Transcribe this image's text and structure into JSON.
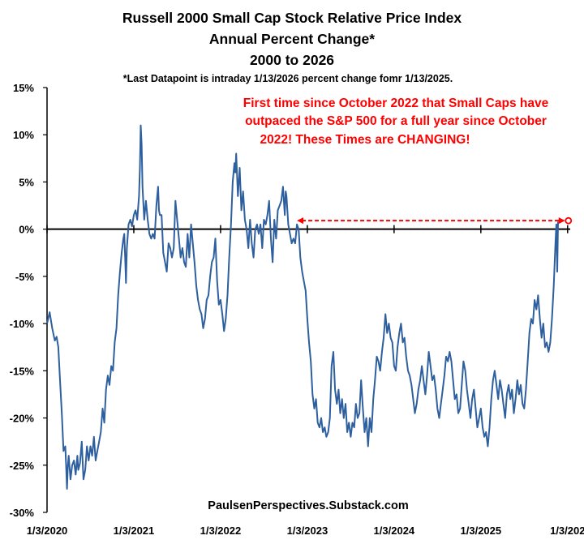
{
  "chart_data": {
    "type": "line",
    "title_lines": [
      "Russell 2000 Small Cap Stock Relative Price Index",
      "Annual Percent Change*",
      "2000 to 2026"
    ],
    "footnote": "*Last Datapoint is intraday 1/13/2026 percent change fomr 1/13/2025.",
    "annotation_lines": [
      "First time since October 2022 that Small Caps have",
      "outpaced the S&P 500 for a full year since October",
      "2022!   These Times are CHANGING!"
    ],
    "source": "PaulsenPerspectives.Substack.com",
    "ylim": [
      -30,
      15
    ],
    "yticks": [
      -30,
      -25,
      -20,
      -15,
      -10,
      -5,
      0,
      5,
      10,
      15
    ],
    "ytick_labels": [
      "-30%",
      "-25%",
      "-20%",
      "-15%",
      "-10%",
      "-5%",
      "0%",
      "5%",
      "10%",
      "15%"
    ],
    "xlim": [
      0,
      6.03
    ],
    "xticks": [
      0,
      1,
      2,
      3,
      4,
      5,
      6
    ],
    "xtick_labels": [
      "1/3/2020",
      "1/3/2021",
      "1/3/2022",
      "1/3/2023",
      "1/3/2024",
      "1/3/2025",
      "1/3/202"
    ],
    "colors": {
      "line": "#2e5f9e",
      "annotation": "#ff0000",
      "axis": "#000000"
    },
    "series": [
      {
        "name": "Russell 2000 Relative Price Index Annual % Change",
        "points": [
          [
            0.0,
            -10.0
          ],
          [
            0.03,
            -8.8
          ],
          [
            0.06,
            -10.5
          ],
          [
            0.09,
            -11.8
          ],
          [
            0.11,
            -11.4
          ],
          [
            0.13,
            -12.5
          ],
          [
            0.15,
            -16.0
          ],
          [
            0.17,
            -19.5
          ],
          [
            0.19,
            -23.5
          ],
          [
            0.21,
            -23.0
          ],
          [
            0.22,
            -25.0
          ],
          [
            0.23,
            -27.5
          ],
          [
            0.24,
            -25.0
          ],
          [
            0.25,
            -24.0
          ],
          [
            0.27,
            -26.5
          ],
          [
            0.29,
            -25.0
          ],
          [
            0.31,
            -24.5
          ],
          [
            0.33,
            -26.0
          ],
          [
            0.35,
            -24.0
          ],
          [
            0.36,
            -25.5
          ],
          [
            0.38,
            -24.8
          ],
          [
            0.4,
            -22.5
          ],
          [
            0.42,
            -26.5
          ],
          [
            0.44,
            -25.5
          ],
          [
            0.46,
            -23.0
          ],
          [
            0.48,
            -24.5
          ],
          [
            0.5,
            -23.0
          ],
          [
            0.52,
            -24.0
          ],
          [
            0.54,
            -22.0
          ],
          [
            0.56,
            -24.5
          ],
          [
            0.58,
            -23.5
          ],
          [
            0.6,
            -22.5
          ],
          [
            0.62,
            -21.5
          ],
          [
            0.64,
            -19.0
          ],
          [
            0.66,
            -20.5
          ],
          [
            0.68,
            -17.0
          ],
          [
            0.7,
            -15.5
          ],
          [
            0.72,
            -16.5
          ],
          [
            0.74,
            -14.5
          ],
          [
            0.76,
            -15.0
          ],
          [
            0.78,
            -12.0
          ],
          [
            0.8,
            -10.5
          ],
          [
            0.82,
            -7.0
          ],
          [
            0.84,
            -4.5
          ],
          [
            0.86,
            -2.5
          ],
          [
            0.88,
            -1.0
          ],
          [
            0.89,
            -0.5
          ],
          [
            0.9,
            -3.0
          ],
          [
            0.91,
            -5.7
          ],
          [
            0.92,
            -2.0
          ],
          [
            0.94,
            0.5
          ],
          [
            0.96,
            1.0
          ],
          [
            0.98,
            0.3
          ],
          [
            1.0,
            1.5
          ],
          [
            1.02,
            2.0
          ],
          [
            1.04,
            1.0
          ],
          [
            1.06,
            3.5
          ],
          [
            1.07,
            6.5
          ],
          [
            1.08,
            11.0
          ],
          [
            1.09,
            9.0
          ],
          [
            1.1,
            4.5
          ],
          [
            1.12,
            1.0
          ],
          [
            1.14,
            3.0
          ],
          [
            1.16,
            1.0
          ],
          [
            1.18,
            -0.5
          ],
          [
            1.2,
            -1.0
          ],
          [
            1.22,
            -0.5
          ],
          [
            1.24,
            -1.0
          ],
          [
            1.26,
            2.5
          ],
          [
            1.28,
            4.5
          ],
          [
            1.29,
            2.0
          ],
          [
            1.3,
            1.5
          ],
          [
            1.32,
            1.5
          ],
          [
            1.34,
            -2.5
          ],
          [
            1.36,
            -3.5
          ],
          [
            1.38,
            -4.5
          ],
          [
            1.4,
            -1.5
          ],
          [
            1.42,
            -2.0
          ],
          [
            1.44,
            -3.0
          ],
          [
            1.46,
            -2.0
          ],
          [
            1.48,
            3.0
          ],
          [
            1.5,
            1.0
          ],
          [
            1.52,
            -1.0
          ],
          [
            1.54,
            -3.0
          ],
          [
            1.56,
            -2.0
          ],
          [
            1.58,
            -3.5
          ],
          [
            1.6,
            -4.0
          ],
          [
            1.62,
            -0.5
          ],
          [
            1.64,
            -3.0
          ],
          [
            1.66,
            0.5
          ],
          [
            1.68,
            -1.5
          ],
          [
            1.7,
            -3.5
          ],
          [
            1.72,
            -6.0
          ],
          [
            1.74,
            -7.5
          ],
          [
            1.76,
            -8.5
          ],
          [
            1.78,
            -9.0
          ],
          [
            1.8,
            -10.5
          ],
          [
            1.82,
            -9.5
          ],
          [
            1.84,
            -7.5
          ],
          [
            1.86,
            -7.0
          ],
          [
            1.88,
            -5.0
          ],
          [
            1.9,
            -3.5
          ],
          [
            1.92,
            -3.0
          ],
          [
            1.94,
            -1.0
          ],
          [
            1.96,
            -5.5
          ],
          [
            1.98,
            -8.0
          ],
          [
            2.0,
            -7.5
          ],
          [
            2.02,
            -9.0
          ],
          [
            2.04,
            -10.8
          ],
          [
            2.06,
            -9.5
          ],
          [
            2.08,
            -7.0
          ],
          [
            2.1,
            -3.0
          ],
          [
            2.12,
            0.5
          ],
          [
            2.14,
            5.0
          ],
          [
            2.16,
            7.0
          ],
          [
            2.17,
            6.0
          ],
          [
            2.18,
            8.0
          ],
          [
            2.2,
            3.5
          ],
          [
            2.22,
            6.5
          ],
          [
            2.24,
            2.0
          ],
          [
            2.26,
            4.0
          ],
          [
            2.28,
            1.0
          ],
          [
            2.3,
            0.0
          ],
          [
            2.32,
            -2.0
          ],
          [
            2.34,
            1.0
          ],
          [
            2.36,
            -1.5
          ],
          [
            2.38,
            -3.0
          ],
          [
            2.4,
            0.0
          ],
          [
            2.42,
            0.5
          ],
          [
            2.44,
            -0.5
          ],
          [
            2.46,
            0.5
          ],
          [
            2.48,
            -2.0
          ],
          [
            2.5,
            1.0
          ],
          [
            2.52,
            0.5
          ],
          [
            2.54,
            1.5
          ],
          [
            2.56,
            3.0
          ],
          [
            2.58,
            -1.0
          ],
          [
            2.6,
            -3.5
          ],
          [
            2.62,
            1.0
          ],
          [
            2.64,
            -1.0
          ],
          [
            2.66,
            2.0
          ],
          [
            2.68,
            2.5
          ],
          [
            2.7,
            3.0
          ],
          [
            2.72,
            4.5
          ],
          [
            2.74,
            1.5
          ],
          [
            2.75,
            4.0
          ],
          [
            2.76,
            3.5
          ],
          [
            2.78,
            0.5
          ],
          [
            2.8,
            -0.5
          ],
          [
            2.82,
            -1.5
          ],
          [
            2.84,
            -1.0
          ],
          [
            2.86,
            -1.5
          ],
          [
            2.88,
            0.5
          ],
          [
            2.9,
            0.0
          ],
          [
            2.92,
            -3.0
          ],
          [
            2.94,
            -4.5
          ],
          [
            2.96,
            -5.5
          ],
          [
            2.98,
            -6.5
          ],
          [
            3.0,
            -9.5
          ],
          [
            3.02,
            -12.0
          ],
          [
            3.04,
            -14.0
          ],
          [
            3.06,
            -17.5
          ],
          [
            3.08,
            -19.0
          ],
          [
            3.1,
            -18.0
          ],
          [
            3.12,
            -20.5
          ],
          [
            3.14,
            -21.0
          ],
          [
            3.16,
            -20.0
          ],
          [
            3.18,
            -21.5
          ],
          [
            3.2,
            -21.0
          ],
          [
            3.22,
            -22.0
          ],
          [
            3.24,
            -21.5
          ],
          [
            3.26,
            -20.0
          ],
          [
            3.28,
            -14.5
          ],
          [
            3.3,
            -13.0
          ],
          [
            3.32,
            -17.0
          ],
          [
            3.34,
            -18.5
          ],
          [
            3.36,
            -17.0
          ],
          [
            3.38,
            -19.5
          ],
          [
            3.4,
            -18.0
          ],
          [
            3.42,
            -20.0
          ],
          [
            3.44,
            -18.5
          ],
          [
            3.46,
            -21.5
          ],
          [
            3.48,
            -20.5
          ],
          [
            3.5,
            -22.0
          ],
          [
            3.52,
            -20.5
          ],
          [
            3.54,
            -21.0
          ],
          [
            3.56,
            -18.5
          ],
          [
            3.58,
            -20.0
          ],
          [
            3.6,
            -19.5
          ],
          [
            3.62,
            -16.0
          ],
          [
            3.64,
            -19.0
          ],
          [
            3.66,
            -21.5
          ],
          [
            3.68,
            -20.0
          ],
          [
            3.7,
            -23.0
          ],
          [
            3.72,
            -20.0
          ],
          [
            3.74,
            -21.5
          ],
          [
            3.76,
            -18.0
          ],
          [
            3.78,
            -16.0
          ],
          [
            3.8,
            -13.5
          ],
          [
            3.82,
            -14.0
          ],
          [
            3.84,
            -15.0
          ],
          [
            3.86,
            -13.0
          ],
          [
            3.88,
            -11.5
          ],
          [
            3.9,
            -9.0
          ],
          [
            3.92,
            -11.0
          ],
          [
            3.94,
            -10.0
          ],
          [
            3.96,
            -11.5
          ],
          [
            3.98,
            -12.0
          ],
          [
            4.0,
            -14.5
          ],
          [
            4.02,
            -15.0
          ],
          [
            4.04,
            -12.5
          ],
          [
            4.06,
            -11.0
          ],
          [
            4.08,
            -10.0
          ],
          [
            4.1,
            -12.0
          ],
          [
            4.12,
            -11.5
          ],
          [
            4.14,
            -13.5
          ],
          [
            4.16,
            -15.0
          ],
          [
            4.18,
            -15.5
          ],
          [
            4.2,
            -16.5
          ],
          [
            4.22,
            -18.0
          ],
          [
            4.24,
            -19.5
          ],
          [
            4.26,
            -18.5
          ],
          [
            4.28,
            -17.0
          ],
          [
            4.3,
            -16.0
          ],
          [
            4.32,
            -14.5
          ],
          [
            4.34,
            -16.0
          ],
          [
            4.36,
            -17.5
          ],
          [
            4.38,
            -15.5
          ],
          [
            4.4,
            -13.0
          ],
          [
            4.42,
            -14.5
          ],
          [
            4.44,
            -16.0
          ],
          [
            4.46,
            -15.5
          ],
          [
            4.48,
            -17.0
          ],
          [
            4.5,
            -19.0
          ],
          [
            4.52,
            -20.0
          ],
          [
            4.54,
            -18.5
          ],
          [
            4.56,
            -17.0
          ],
          [
            4.58,
            -15.5
          ],
          [
            4.6,
            -13.5
          ],
          [
            4.62,
            -14.0
          ],
          [
            4.64,
            -13.0
          ],
          [
            4.66,
            -14.0
          ],
          [
            4.68,
            -16.0
          ],
          [
            4.7,
            -18.0
          ],
          [
            4.72,
            -17.5
          ],
          [
            4.74,
            -19.5
          ],
          [
            4.76,
            -19.0
          ],
          [
            4.78,
            -16.5
          ],
          [
            4.8,
            -14.0
          ],
          [
            4.82,
            -15.0
          ],
          [
            4.84,
            -17.0
          ],
          [
            4.86,
            -18.5
          ],
          [
            4.88,
            -20.0
          ],
          [
            4.9,
            -18.0
          ],
          [
            4.92,
            -17.0
          ],
          [
            4.94,
            -19.0
          ],
          [
            4.96,
            -21.0
          ],
          [
            4.98,
            -20.0
          ],
          [
            5.0,
            -19.0
          ],
          [
            5.02,
            -21.0
          ],
          [
            5.04,
            -22.0
          ],
          [
            5.06,
            -21.5
          ],
          [
            5.08,
            -23.0
          ],
          [
            5.1,
            -21.0
          ],
          [
            5.12,
            -18.0
          ],
          [
            5.14,
            -16.0
          ],
          [
            5.16,
            -15.0
          ],
          [
            5.18,
            -16.5
          ],
          [
            5.2,
            -18.0
          ],
          [
            5.22,
            -16.0
          ],
          [
            5.24,
            -17.0
          ],
          [
            5.26,
            -18.5
          ],
          [
            5.28,
            -20.0
          ],
          [
            5.3,
            -17.5
          ],
          [
            5.32,
            -16.5
          ],
          [
            5.34,
            -18.0
          ],
          [
            5.36,
            -17.0
          ],
          [
            5.38,
            -19.5
          ],
          [
            5.4,
            -18.0
          ],
          [
            5.42,
            -16.0
          ],
          [
            5.44,
            -17.5
          ],
          [
            5.46,
            -16.5
          ],
          [
            5.48,
            -18.5
          ],
          [
            5.5,
            -19.0
          ],
          [
            5.52,
            -17.0
          ],
          [
            5.54,
            -14.0
          ],
          [
            5.56,
            -11.0
          ],
          [
            5.58,
            -9.5
          ],
          [
            5.6,
            -10.0
          ],
          [
            5.62,
            -7.5
          ],
          [
            5.64,
            -8.5
          ],
          [
            5.66,
            -7.0
          ],
          [
            5.68,
            -9.5
          ],
          [
            5.7,
            -11.5
          ],
          [
            5.72,
            -10.0
          ],
          [
            5.74,
            -12.5
          ],
          [
            5.76,
            -12.0
          ],
          [
            5.78,
            -13.0
          ],
          [
            5.8,
            -12.0
          ],
          [
            5.82,
            -9.5
          ],
          [
            5.84,
            -6.0
          ],
          [
            5.86,
            -1.5
          ],
          [
            5.87,
            0.5
          ],
          [
            5.88,
            -4.5
          ],
          [
            5.89,
            0.8
          ]
        ]
      }
    ],
    "arrow": {
      "from": [
        2.88,
        0.9
      ],
      "to": [
        6.0,
        0.9
      ],
      "style": "dashed double-headed"
    }
  }
}
